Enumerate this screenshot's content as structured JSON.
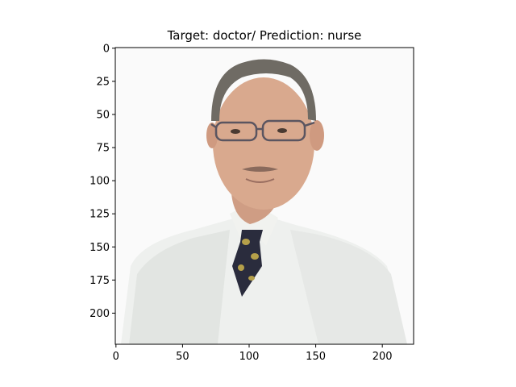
{
  "figure": {
    "title": "Target: doctor/ Prediction: nurse",
    "y_axis": {
      "ticks": [
        "0",
        "25",
        "50",
        "75",
        "100",
        "125",
        "150",
        "175",
        "200"
      ],
      "range": [
        0,
        224
      ]
    },
    "x_axis": {
      "ticks": [
        "0",
        "50",
        "100",
        "150",
        "200"
      ],
      "range": [
        0,
        224
      ]
    },
    "image": {
      "subject": "doctor-portrait",
      "colors": {
        "background": "#fafafa",
        "coat": "#eef0ee",
        "skin": "#d9a98e",
        "hair": "#6f6b64",
        "tie": "#2a2c3d",
        "tie_pattern": "#b5a04a"
      }
    }
  }
}
